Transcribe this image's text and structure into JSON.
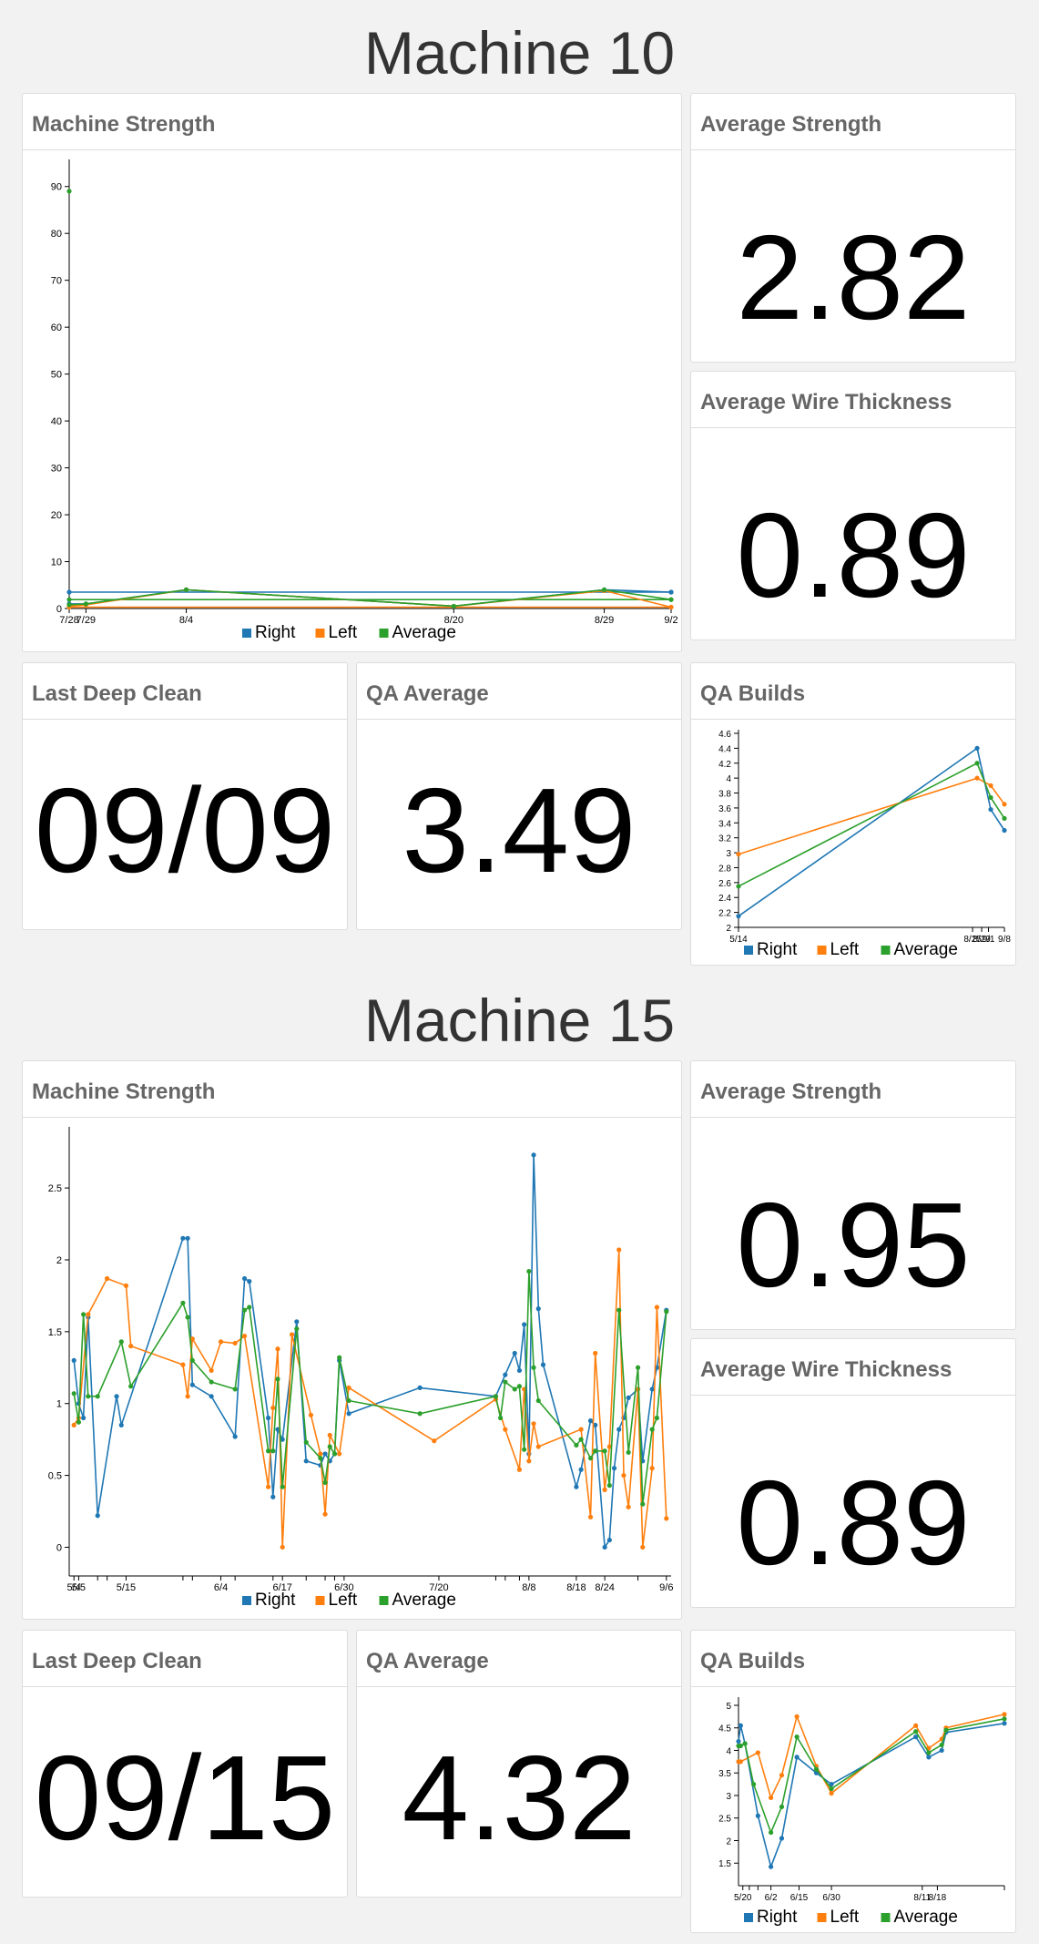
{
  "machines": [
    {
      "title": "Machine 10",
      "strength": {
        "title": "Machine Strength"
      },
      "avg_strength": {
        "title": "Average Strength",
        "value": "2.82"
      },
      "avg_wire": {
        "title": "Average Wire Thickness",
        "value": "0.89"
      },
      "deep_clean": {
        "title": "Last Deep Clean",
        "value": "09/09"
      },
      "qa_avg": {
        "title": "QA Average",
        "value": "3.49"
      },
      "qa_builds": {
        "title": "QA Builds"
      }
    },
    {
      "title": "Machine 15",
      "strength": {
        "title": "Machine Strength"
      },
      "avg_strength": {
        "title": "Average Strength",
        "value": "0.95"
      },
      "avg_wire": {
        "title": "Average Wire Thickness",
        "value": "0.89"
      },
      "deep_clean": {
        "title": "Last Deep Clean",
        "value": "09/15"
      },
      "qa_avg": {
        "title": "QA Average",
        "value": "4.32"
      },
      "qa_builds": {
        "title": "QA Builds"
      }
    }
  ],
  "colors": {
    "right": "#1f77b4",
    "left": "#ff7f0e",
    "average": "#2ca02c"
  },
  "chart_data": [
    {
      "id": "m10-strength",
      "type": "line",
      "ylim": [
        0,
        95
      ],
      "yticks": [
        0,
        10,
        20,
        30,
        40,
        50,
        60,
        70,
        80,
        90
      ],
      "xlim": [
        "2018-07-28",
        "2018-09-02"
      ],
      "xticks": [
        {
          "date": "2018-07-28",
          "label": "7/28"
        },
        {
          "date": "2018-07-29",
          "label": "7/29"
        },
        {
          "date": "2018-08-04",
          "label": "8/4"
        },
        {
          "date": "2018-08-20",
          "label": "8/20"
        },
        {
          "date": "2018-08-29",
          "label": "8/29"
        },
        {
          "date": "2018-09-02",
          "label": "9/2"
        }
      ],
      "legend": [
        "Right",
        "Left",
        "Average"
      ],
      "series": [
        {
          "name": "Right",
          "x": [
            "2018-07-28",
            "2018-09-02"
          ],
          "values": [
            3.5,
            3.5
          ]
        },
        {
          "name": "Left",
          "x": [
            "2018-07-28",
            "2018-09-02"
          ],
          "values": [
            0.3,
            0.3
          ]
        },
        {
          "name": "Average",
          "x": [
            "2018-07-28",
            "2018-09-02"
          ],
          "values": [
            1.9,
            1.9
          ]
        },
        {
          "name": "Right",
          "x": [
            "2018-07-28",
            "2018-07-29",
            "2018-08-04",
            "2018-08-20",
            "2018-08-29",
            "2018-09-02"
          ],
          "values": [
            1.0,
            1.0,
            4.0,
            0.5,
            4.0,
            3.5
          ]
        },
        {
          "name": "Left",
          "x": [
            "2018-07-28",
            "2018-07-29",
            "2018-08-04",
            "2018-08-20",
            "2018-08-29",
            "2018-09-02"
          ],
          "values": [
            0.5,
            0.8,
            4.0,
            0.5,
            3.8,
            0.3
          ]
        },
        {
          "name": "Average",
          "x": [
            "2018-07-28",
            "2018-07-29",
            "2018-08-04",
            "2018-08-20",
            "2018-08-29",
            "2018-09-02"
          ],
          "values": [
            0.8,
            1.0,
            4.0,
            0.5,
            4.0,
            1.9
          ]
        },
        {
          "name": "Average",
          "x": [
            "2018-07-28"
          ],
          "values": [
            89
          ]
        }
      ]
    },
    {
      "id": "m10-qa",
      "type": "line",
      "ylim": [
        2,
        4.6
      ],
      "yticks": [
        2,
        2.2,
        2.4,
        2.6,
        2.8,
        3,
        3.2,
        3.4,
        3.6,
        3.8,
        4,
        4.2,
        4.4,
        4.6
      ],
      "xlim": [
        "2018-05-14",
        "2018-09-08"
      ],
      "xticks": [
        {
          "date": "2018-05-14",
          "label": "5/14"
        },
        {
          "date": "2018-08-25",
          "label": "8/25"
        },
        {
          "date": "2018-08-29",
          "label": "8/29"
        },
        {
          "date": "2018-09-01",
          "label": "9/1"
        },
        {
          "date": "2018-09-08",
          "label": "9/8"
        }
      ],
      "legend": [
        "Right",
        "Left",
        "Average"
      ],
      "series": [
        {
          "name": "Right",
          "x": [
            "2018-05-14",
            "2018-08-27",
            "2018-09-02",
            "2018-09-08"
          ],
          "values": [
            2.15,
            4.4,
            3.58,
            3.3
          ]
        },
        {
          "name": "Left",
          "x": [
            "2018-05-14",
            "2018-08-27",
            "2018-09-02",
            "2018-09-08"
          ],
          "values": [
            2.98,
            4.0,
            3.9,
            3.65
          ]
        },
        {
          "name": "Average",
          "x": [
            "2018-05-14",
            "2018-08-27",
            "2018-09-02",
            "2018-09-08"
          ],
          "values": [
            2.55,
            4.2,
            3.74,
            3.46
          ]
        }
      ]
    },
    {
      "id": "m15-strength",
      "type": "line",
      "ylim": [
        -0.2,
        2.9
      ],
      "yticks": [
        0,
        0.5,
        1,
        1.5,
        2,
        2.5
      ],
      "xlim": [
        "2018-05-03",
        "2018-09-07"
      ],
      "xticks": [
        {
          "date": "2018-05-04",
          "label": "5/4"
        },
        {
          "date": "2018-05-05",
          "label": "5/5"
        },
        {
          "date": "2018-05-09",
          "label": ""
        },
        {
          "date": "2018-05-11",
          "label": ""
        },
        {
          "date": "2018-05-15",
          "label": "5/15"
        },
        {
          "date": "2018-05-27",
          "label": ""
        },
        {
          "date": "2018-05-29",
          "label": ""
        },
        {
          "date": "2018-06-04",
          "label": "6/4"
        },
        {
          "date": "2018-06-07",
          "label": ""
        },
        {
          "date": "2018-06-15",
          "label": ""
        },
        {
          "date": "2018-06-17",
          "label": "6/17"
        },
        {
          "date": "2018-06-22",
          "label": ""
        },
        {
          "date": "2018-06-26",
          "label": ""
        },
        {
          "date": "2018-06-28",
          "label": ""
        },
        {
          "date": "2018-06-30",
          "label": "6/30"
        },
        {
          "date": "2018-07-20",
          "label": "7/20"
        },
        {
          "date": "2018-08-01",
          "label": ""
        },
        {
          "date": "2018-08-03",
          "label": ""
        },
        {
          "date": "2018-08-06",
          "label": ""
        },
        {
          "date": "2018-08-08",
          "label": "8/8"
        },
        {
          "date": "2018-08-18",
          "label": "8/18"
        },
        {
          "date": "2018-08-24",
          "label": "8/24"
        },
        {
          "date": "2018-08-31",
          "label": ""
        },
        {
          "date": "2018-09-06",
          "label": "9/6"
        }
      ],
      "legend": [
        "Right",
        "Left",
        "Average"
      ],
      "series": [
        {
          "name": "Right",
          "x": [
            "2018-05-04",
            "2018-05-05",
            "2018-05-06",
            "2018-05-07",
            "2018-05-09",
            "2018-05-13",
            "2018-05-14",
            "2018-05-27",
            "2018-05-28",
            "2018-05-29",
            "2018-06-02",
            "2018-06-07",
            "2018-06-09",
            "2018-06-10",
            "2018-06-14",
            "2018-06-15",
            "2018-06-16",
            "2018-06-17",
            "2018-06-20",
            "2018-06-22",
            "2018-06-25",
            "2018-06-26",
            "2018-06-27",
            "2018-06-28",
            "2018-06-29",
            "2018-07-01",
            "2018-07-16",
            "2018-08-01",
            "2018-08-03",
            "2018-08-05",
            "2018-08-06",
            "2018-08-07",
            "2018-08-08",
            "2018-08-09",
            "2018-08-10",
            "2018-08-11",
            "2018-08-18",
            "2018-08-19",
            "2018-08-21",
            "2018-08-22",
            "2018-08-24",
            "2018-08-25",
            "2018-08-26",
            "2018-08-27",
            "2018-08-28",
            "2018-08-29",
            "2018-08-31",
            "2018-09-01",
            "2018-09-03",
            "2018-09-04",
            "2018-09-06"
          ],
          "values": [
            1.3,
            1.0,
            0.9,
            1.6,
            0.22,
            1.05,
            0.85,
            2.15,
            2.15,
            1.13,
            1.05,
            0.77,
            1.87,
            1.85,
            0.9,
            0.35,
            0.82,
            0.75,
            1.57,
            0.6,
            0.57,
            0.65,
            0.6,
            0.65,
            1.3,
            0.93,
            1.11,
            1.05,
            1.2,
            1.35,
            1.23,
            1.55,
            0.65,
            2.73,
            1.66,
            1.27,
            0.42,
            0.54,
            0.88,
            0.85,
            0.0,
            0.05,
            0.55,
            0.82,
            0.9,
            1.04,
            1.1,
            0.6,
            1.1,
            1.25,
            1.65
          ]
        },
        {
          "name": "Left",
          "x": [
            "2018-05-04",
            "2018-05-05",
            "2018-05-07",
            "2018-05-11",
            "2018-05-15",
            "2018-05-16",
            "2018-05-27",
            "2018-05-28",
            "2018-05-29",
            "2018-06-02",
            "2018-06-04",
            "2018-06-07",
            "2018-06-09",
            "2018-06-14",
            "2018-06-15",
            "2018-06-16",
            "2018-06-17",
            "2018-06-19",
            "2018-06-23",
            "2018-06-25",
            "2018-06-26",
            "2018-06-27",
            "2018-06-29",
            "2018-07-01",
            "2018-07-19",
            "2018-08-01",
            "2018-08-03",
            "2018-08-06",
            "2018-08-07",
            "2018-08-08",
            "2018-08-09",
            "2018-08-10",
            "2018-08-19",
            "2018-08-21",
            "2018-08-22",
            "2018-08-24",
            "2018-08-25",
            "2018-08-27",
            "2018-08-28",
            "2018-08-29",
            "2018-08-31",
            "2018-09-01",
            "2018-09-03",
            "2018-09-04",
            "2018-09-06"
          ],
          "values": [
            0.85,
            0.9,
            1.62,
            1.87,
            1.82,
            1.4,
            1.27,
            1.05,
            1.45,
            1.23,
            1.43,
            1.42,
            1.47,
            0.42,
            0.97,
            1.38,
            0.0,
            1.48,
            0.92,
            0.65,
            0.23,
            0.78,
            0.65,
            1.11,
            0.74,
            1.03,
            0.82,
            0.54,
            1.1,
            0.6,
            0.86,
            0.7,
            0.82,
            0.21,
            1.35,
            0.4,
            0.7,
            2.07,
            0.5,
            0.28,
            1.1,
            0.0,
            0.55,
            1.67,
            0.2
          ]
        },
        {
          "name": "Average",
          "x": [
            "2018-05-04",
            "2018-05-05",
            "2018-05-06",
            "2018-05-07",
            "2018-05-09",
            "2018-05-14",
            "2018-05-16",
            "2018-05-27",
            "2018-05-28",
            "2018-05-29",
            "2018-06-02",
            "2018-06-07",
            "2018-06-09",
            "2018-06-10",
            "2018-06-14",
            "2018-06-15",
            "2018-06-16",
            "2018-06-17",
            "2018-06-20",
            "2018-06-22",
            "2018-06-25",
            "2018-06-26",
            "2018-06-27",
            "2018-06-28",
            "2018-06-29",
            "2018-07-01",
            "2018-07-16",
            "2018-08-01",
            "2018-08-02",
            "2018-08-03",
            "2018-08-05",
            "2018-08-06",
            "2018-08-07",
            "2018-08-08",
            "2018-08-09",
            "2018-08-10",
            "2018-08-18",
            "2018-08-19",
            "2018-08-21",
            "2018-08-22",
            "2018-08-24",
            "2018-08-25",
            "2018-08-27",
            "2018-08-29",
            "2018-08-31",
            "2018-09-01",
            "2018-09-03",
            "2018-09-04",
            "2018-09-06"
          ],
          "values": [
            1.07,
            0.87,
            1.62,
            1.05,
            1.05,
            1.43,
            1.12,
            1.7,
            1.6,
            1.3,
            1.15,
            1.1,
            1.65,
            1.67,
            0.67,
            0.67,
            1.17,
            0.42,
            1.52,
            0.73,
            0.62,
            0.45,
            0.7,
            0.65,
            1.32,
            1.02,
            0.93,
            1.05,
            0.9,
            1.15,
            1.1,
            1.12,
            0.68,
            1.92,
            1.25,
            1.02,
            0.71,
            0.75,
            0.62,
            0.67,
            0.67,
            0.43,
            1.65,
            0.66,
            1.25,
            0.3,
            0.82,
            0.9,
            1.64
          ]
        }
      ]
    },
    {
      "id": "m15-qa",
      "type": "line",
      "ylim": [
        1,
        5.1
      ],
      "yticks": [
        1.5,
        2,
        2.5,
        3,
        3.5,
        4,
        4.5,
        5
      ],
      "xlim": [
        "2018-05-18",
        "2018-09-18"
      ],
      "xticks": [
        {
          "date": "2018-05-20",
          "label": "5/20"
        },
        {
          "date": "2018-05-23",
          "label": ""
        },
        {
          "date": "2018-05-27",
          "label": ""
        },
        {
          "date": "2018-06-02",
          "label": "6/2"
        },
        {
          "date": "2018-06-15",
          "label": "6/15"
        },
        {
          "date": "2018-06-30",
          "label": "6/30"
        },
        {
          "date": "2018-08-11",
          "label": "8/11"
        },
        {
          "date": "2018-08-18",
          "label": "8/18"
        },
        {
          "date": "2018-09-18",
          "label": ""
        }
      ],
      "legend": [
        "Right",
        "Left",
        "Average"
      ],
      "series": [
        {
          "name": "Right",
          "x": [
            "2018-05-18",
            "2018-05-19",
            "2018-05-21",
            "2018-05-27",
            "2018-06-02",
            "2018-06-07",
            "2018-06-14",
            "2018-06-23",
            "2018-06-30",
            "2018-08-08",
            "2018-08-14",
            "2018-08-20",
            "2018-08-22",
            "2018-09-18"
          ],
          "values": [
            4.2,
            4.55,
            4.15,
            2.55,
            1.42,
            2.05,
            3.85,
            3.5,
            3.25,
            4.3,
            3.85,
            4.0,
            4.4,
            4.6
          ]
        },
        {
          "name": "Left",
          "x": [
            "2018-05-18",
            "2018-05-19",
            "2018-05-27",
            "2018-06-02",
            "2018-06-07",
            "2018-06-14",
            "2018-06-23",
            "2018-06-30",
            "2018-08-08",
            "2018-08-14",
            "2018-08-20",
            "2018-08-22",
            "2018-09-18"
          ],
          "values": [
            3.75,
            3.75,
            3.95,
            2.95,
            3.45,
            4.75,
            3.65,
            3.05,
            4.55,
            4.05,
            4.25,
            4.5,
            4.8
          ]
        },
        {
          "name": "Average",
          "x": [
            "2018-05-18",
            "2018-05-19",
            "2018-05-21",
            "2018-05-25",
            "2018-06-02",
            "2018-06-07",
            "2018-06-14",
            "2018-06-23",
            "2018-06-30",
            "2018-08-08",
            "2018-08-14",
            "2018-08-20",
            "2018-08-22",
            "2018-09-18"
          ],
          "values": [
            4.1,
            4.1,
            4.15,
            3.25,
            2.18,
            2.75,
            4.3,
            3.58,
            3.15,
            4.42,
            3.95,
            4.12,
            4.45,
            4.7
          ]
        }
      ]
    }
  ]
}
